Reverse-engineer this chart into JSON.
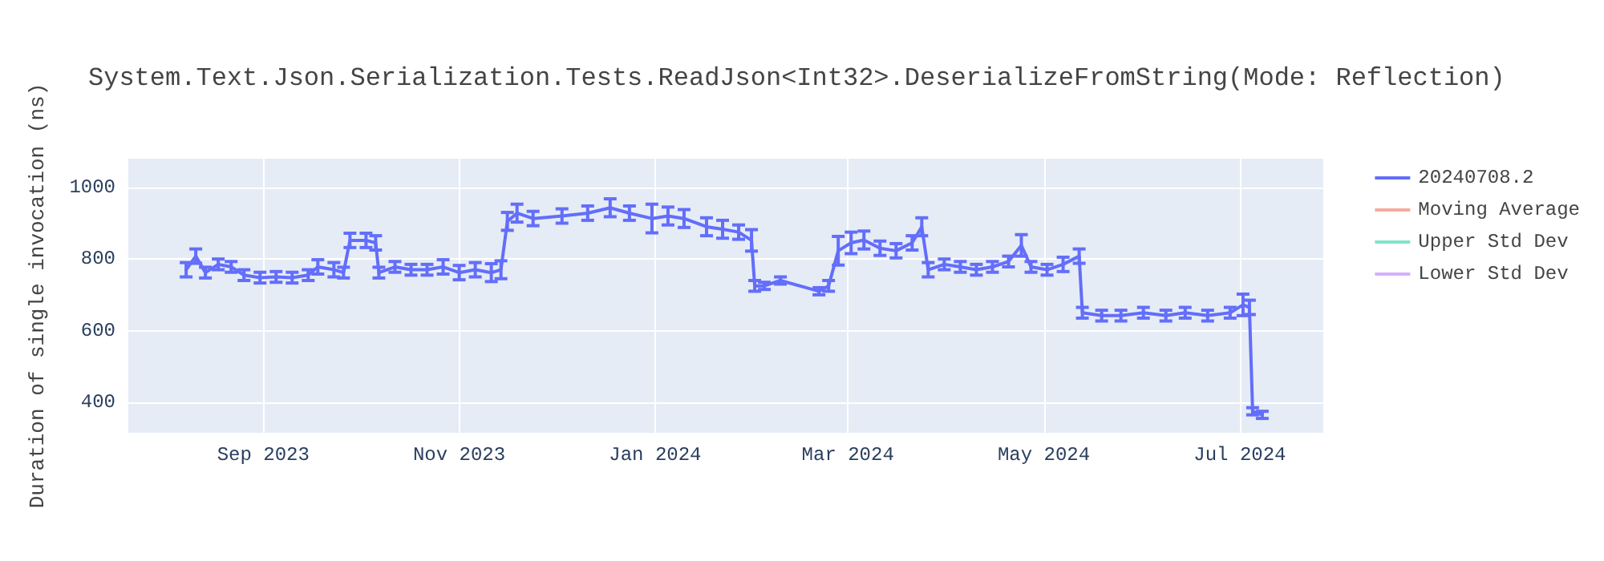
{
  "chart_data": {
    "type": "line",
    "title": "System.Text.Json.Serialization.Tests.ReadJson<Int32>.DeserializeFromString(Mode: Reflection)",
    "ylabel": "Duration of single invocation (ns)",
    "x": [
      "2023-08-08",
      "2023-08-11",
      "2023-08-14",
      "2023-08-18",
      "2023-08-22",
      "2023-08-26",
      "2023-08-31",
      "2023-09-05",
      "2023-09-10",
      "2023-09-15",
      "2023-09-18",
      "2023-09-23",
      "2023-09-26",
      "2023-09-28",
      "2023-10-03",
      "2023-10-06",
      "2023-10-07",
      "2023-10-12",
      "2023-10-17",
      "2023-10-22",
      "2023-10-27",
      "2023-11-01",
      "2023-11-06",
      "2023-11-11",
      "2023-11-14",
      "2023-11-16",
      "2023-11-19",
      "2023-11-24",
      "2023-12-03",
      "2023-12-11",
      "2023-12-18",
      "2023-12-24",
      "2023-12-31",
      "2024-01-05",
      "2024-01-10",
      "2024-01-17",
      "2024-01-22",
      "2024-01-27",
      "2024-01-31",
      "2024-02-01",
      "2024-02-04",
      "2024-02-09",
      "2024-02-21",
      "2024-02-24",
      "2024-02-27",
      "2024-03-02",
      "2024-03-06",
      "2024-03-11",
      "2024-03-16",
      "2024-03-21",
      "2024-03-24",
      "2024-03-26",
      "2024-03-31",
      "2024-04-05",
      "2024-04-10",
      "2024-04-15",
      "2024-04-20",
      "2024-04-24",
      "2024-04-27",
      "2024-05-02",
      "2024-05-07",
      "2024-05-12",
      "2024-05-13",
      "2024-05-19",
      "2024-05-25",
      "2024-06-01",
      "2024-06-08",
      "2024-06-14",
      "2024-06-21",
      "2024-06-28",
      "2024-07-02",
      "2024-07-04",
      "2024-07-05",
      "2024-07-08"
    ],
    "series": [
      {
        "name": "20240708.2",
        "color": "#636efa",
        "values": [
          770,
          808,
          762,
          785,
          778,
          755,
          748,
          750,
          748,
          755,
          778,
          770,
          762,
          852,
          852,
          845,
          762,
          778,
          770,
          770,
          778,
          762,
          770,
          762,
          770,
          905,
          928,
          913,
          920,
          928,
          943,
          928,
          913,
          920,
          913,
          890,
          883,
          875,
          852,
          725,
          725,
          740,
          710,
          725,
          823,
          845,
          853,
          830,
          823,
          845,
          890,
          770,
          785,
          778,
          770,
          778,
          793,
          838,
          778,
          770,
          785,
          808,
          650,
          642,
          642,
          650,
          642,
          650,
          642,
          650,
          672,
          665,
          375,
          365
        ],
        "errors": [
          20,
          20,
          15,
          15,
          15,
          15,
          15,
          15,
          15,
          15,
          20,
          20,
          15,
          20,
          20,
          20,
          15,
          15,
          15,
          15,
          20,
          20,
          20,
          25,
          25,
          25,
          25,
          20,
          20,
          20,
          25,
          20,
          40,
          25,
          25,
          25,
          25,
          20,
          30,
          15,
          10,
          10,
          10,
          15,
          40,
          30,
          25,
          20,
          20,
          20,
          25,
          20,
          15,
          15,
          15,
          15,
          15,
          30,
          15,
          15,
          20,
          20,
          15,
          15,
          15,
          15,
          15,
          15,
          15,
          15,
          30,
          20,
          10,
          10
        ]
      },
      {
        "name": "Moving Average",
        "color": "#f6aa9d",
        "values": [
          null,
          null,
          null,
          null,
          null,
          null,
          null,
          null,
          null,
          null,
          null,
          null,
          null,
          null,
          null,
          null,
          null,
          null,
          null,
          null,
          null,
          null,
          null,
          null,
          null,
          null,
          null,
          null,
          null,
          null,
          null,
          null,
          null,
          null,
          null,
          null,
          null,
          null,
          null,
          null,
          null,
          null,
          null,
          null,
          null,
          null,
          null,
          null,
          null,
          null,
          null,
          null,
          null,
          null,
          null,
          null,
          null,
          null,
          null,
          null,
          null,
          null,
          null,
          null,
          null,
          null,
          null,
          null,
          null,
          null,
          null,
          null,
          null,
          null
        ]
      },
      {
        "name": "Upper Std Dev",
        "color": "#7fe5ca",
        "values": [
          null,
          null,
          null,
          null,
          null,
          null,
          null,
          null,
          null,
          null,
          null,
          null,
          null,
          null,
          null,
          null,
          null,
          null,
          null,
          null,
          null,
          null,
          null,
          null,
          null,
          null,
          null,
          null,
          null,
          null,
          null,
          null,
          null,
          null,
          null,
          null,
          null,
          null,
          null,
          null,
          null,
          null,
          null,
          null,
          null,
          null,
          null,
          null,
          null,
          null,
          null,
          null,
          null,
          null,
          null,
          null,
          null,
          null,
          null,
          null,
          null,
          null,
          null,
          null,
          null,
          null,
          null,
          null,
          null,
          null,
          null,
          null,
          null,
          null
        ]
      },
      {
        "name": "Lower Std Dev",
        "color": "#d5b1fc",
        "values": [
          null,
          null,
          null,
          null,
          null,
          null,
          null,
          null,
          null,
          null,
          null,
          null,
          null,
          null,
          null,
          null,
          null,
          null,
          null,
          null,
          null,
          null,
          null,
          null,
          null,
          null,
          null,
          null,
          null,
          null,
          null,
          null,
          null,
          null,
          null,
          null,
          null,
          null,
          null,
          null,
          null,
          null,
          null,
          null,
          null,
          null,
          null,
          null,
          null,
          null,
          null,
          null,
          null,
          null,
          null,
          null,
          null,
          null,
          null,
          null,
          null,
          null,
          null,
          null,
          null,
          null,
          null,
          null,
          null,
          null,
          null,
          null,
          null,
          null
        ]
      }
    ],
    "xlim": [
      "2023-07-21",
      "2024-07-27"
    ],
    "xticks": [
      {
        "value": "2023-09-01",
        "label": "Sep 2023"
      },
      {
        "value": "2023-11-01",
        "label": "Nov 2023"
      },
      {
        "value": "2024-01-01",
        "label": "Jan 2024"
      },
      {
        "value": "2024-03-01",
        "label": "Mar 2024"
      },
      {
        "value": "2024-05-01",
        "label": "May 2024"
      },
      {
        "value": "2024-07-01",
        "label": "Jul 2024"
      }
    ],
    "ylim": [
      315,
      1080
    ],
    "yticks": [
      400,
      600,
      800,
      1000
    ],
    "grid": true,
    "legend": "top right",
    "marker": "none",
    "line_style": "solid"
  }
}
